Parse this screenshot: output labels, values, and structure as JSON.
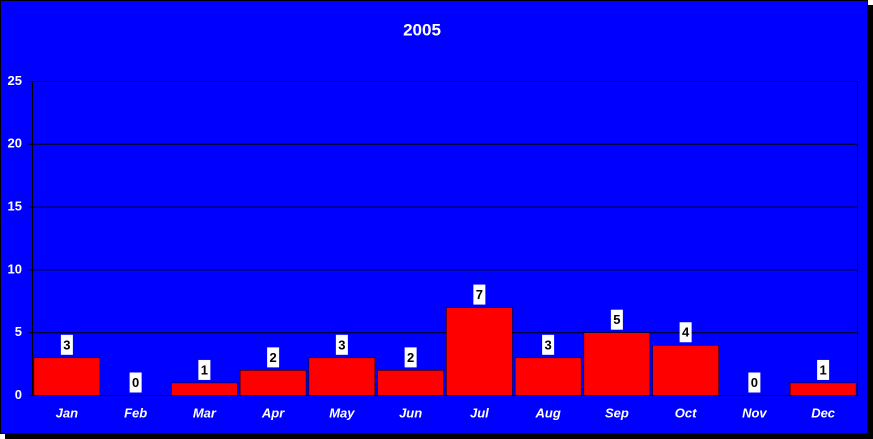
{
  "chart_data": {
    "type": "bar",
    "title": "2005",
    "categories": [
      "Jan",
      "Feb",
      "Mar",
      "Apr",
      "May",
      "Jun",
      "Jul",
      "Aug",
      "Sep",
      "Oct",
      "Nov",
      "Dec"
    ],
    "values": [
      3,
      0,
      1,
      2,
      3,
      2,
      7,
      3,
      5,
      4,
      0,
      1
    ],
    "color": "#ff0000",
    "ylim": [
      0,
      25
    ],
    "yticks": [
      0,
      5,
      10,
      15,
      20,
      25
    ],
    "grid": true
  }
}
